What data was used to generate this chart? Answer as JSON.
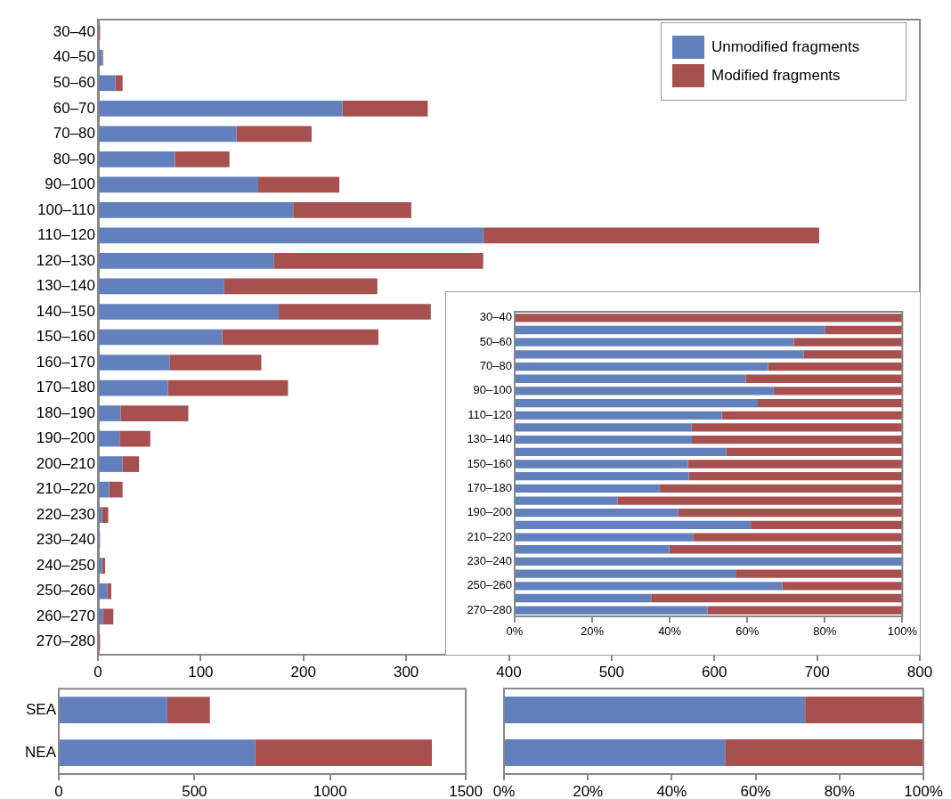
{
  "chart_data": [
    {
      "type": "bar",
      "orientation": "horizontal",
      "stacked": true,
      "legend": "top right",
      "categories": [
        "30–40",
        "40–50",
        "50–60",
        "60–70",
        "70–80",
        "80–90",
        "90–100",
        "100–110",
        "110–120",
        "120–130",
        "130–140",
        "140–150",
        "150–160",
        "160–170",
        "170–180",
        "180–190",
        "190–200",
        "200–210",
        "210–220",
        "220–230",
        "230–240",
        "240–250",
        "250–260",
        "260–270",
        "270–280"
      ],
      "series": [
        {
          "name": "Unmodified fragments",
          "color": "#6180bc",
          "values": [
            0,
            4,
            17,
            238,
            135,
            75,
            156,
            190,
            375,
            171,
            123,
            176,
            121,
            70,
            68,
            22,
            21,
            24,
            11,
            4,
            2,
            4,
            9,
            5,
            null
          ]
        },
        {
          "name": "Modified fragments",
          "color": "#a6514f",
          "values": [
            2,
            1,
            7,
            83,
            73,
            53,
            79,
            115,
            327,
            204,
            149,
            148,
            152,
            89,
            117,
            66,
            30,
            16,
            13,
            6,
            0,
            3,
            4,
            10,
            2
          ]
        }
      ],
      "xlim": [
        0,
        800
      ],
      "xticks": [
        0,
        100,
        200,
        300,
        400,
        500,
        600,
        700,
        800
      ]
    },
    {
      "type": "bar",
      "orientation": "horizontal",
      "stacked": true,
      "categories": [
        "30–40",
        null,
        "50–60",
        null,
        "70–80",
        null,
        "90–100",
        null,
        "110–120",
        null,
        "130–140",
        null,
        "150–160",
        null,
        "170–180",
        null,
        "190–200",
        null,
        "210–220",
        null,
        "230–240",
        null,
        "250–260",
        null,
        "270–280"
      ],
      "series": [
        {
          "color": "#6180bc",
          "values": [
            0,
            80,
            72,
            74.5,
            65.4,
            59.6,
            66.8,
            62.7,
            53.4,
            45.6,
            45.7,
            54.6,
            44.7,
            44.9,
            37.4,
            26.5,
            42.2,
            60.9,
            46,
            39.9,
            100,
            57,
            69,
            35.2,
            49.7
          ]
        },
        {
          "color": "#a6514f",
          "values": [
            100,
            20,
            28,
            25.5,
            34.6,
            40.4,
            33.2,
            37.3,
            46.6,
            54.4,
            54.3,
            45.4,
            55.3,
            55.1,
            62.6,
            73.5,
            57.8,
            39.1,
            54,
            60.1,
            0,
            43,
            31,
            64.8,
            50.3
          ]
        }
      ],
      "xlim": [
        0,
        100
      ],
      "xticks": [
        {
          "value": 0,
          "label": "0%"
        },
        {
          "value": 20,
          "label": "20%"
        },
        {
          "value": 40,
          "label": "40%"
        },
        {
          "value": 60,
          "label": "60%"
        },
        {
          "value": 80,
          "label": "80%"
        },
        {
          "value": 100,
          "label": "100%"
        }
      ]
    },
    {
      "type": "bar",
      "orientation": "horizontal",
      "stacked": true,
      "categories": [
        "SEA",
        "NEA"
      ],
      "series": [
        {
          "color": "#6180bc",
          "values": [
            400,
            723
          ]
        },
        {
          "color": "#a6514f",
          "values": [
            157,
            652
          ]
        }
      ],
      "xlim": [
        0,
        1500
      ],
      "xticks": [
        0,
        500,
        1000,
        1500
      ]
    },
    {
      "type": "bar",
      "orientation": "horizontal",
      "stacked": true,
      "tick_labels": "x",
      "categories": [
        null,
        null
      ],
      "series": [
        {
          "color": "#6180bc",
          "values": [
            71.8,
            52.7
          ]
        },
        {
          "color": "#a6514f",
          "values": [
            28.2,
            47.3
          ]
        }
      ],
      "xlim": [
        0,
        100
      ],
      "xticks": [
        {
          "value": 0,
          "label": "0%"
        },
        {
          "value": 20,
          "label": "20%"
        },
        {
          "value": 40,
          "label": "40%"
        },
        {
          "value": 60,
          "label": "60%"
        },
        {
          "value": 80,
          "label": "80%"
        },
        {
          "value": 100,
          "label": "100%"
        }
      ]
    }
  ]
}
